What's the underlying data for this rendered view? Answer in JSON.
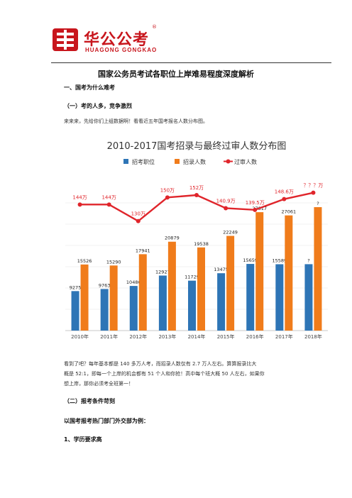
{
  "header": {
    "brand_cn": "华公公考",
    "brand_en": "HUAGONG GONGKAO",
    "reg": "®"
  },
  "document": {
    "title": "国家公务员考试各职位上岸难易程度深度解析",
    "section1": "一、国考为什么难考",
    "section1_1": "（一）考的人多，竞争激烈",
    "intro": "来来来，先给你们上组数据啊！看看近五年国考报名人数分布图。",
    "analysis_line1": "看到了吧？每年基本都是 140 多万人考，而招录人数仅有 2.7 万人左右。算算报录比大",
    "analysis_line2": "概是 52:1，即每一个上岸的机会都有 51 个人和你抢！高中每个班大概 50 人左右，如果你",
    "analysis_line3": "想上岸，那你必须考全班第一！",
    "section1_2": "（二）报考条件苛刻",
    "example": "以国考报考热门部门外交部为例：",
    "item1": "1、学历要求高"
  },
  "colors": {
    "brand_red": "#c8161d",
    "blue": "#2e75b6",
    "orange": "#f07c1b",
    "line_red": "#e0252b"
  },
  "chart_data": {
    "type": "bar",
    "title": "2010-2017国考招录与最终过审人数分布图",
    "categories": [
      "2010年",
      "2011年",
      "2012年",
      "2013年",
      "2014年",
      "2015年",
      "2016年",
      "2017年",
      "2018年"
    ],
    "legend": [
      "招考职位",
      "招录人数",
      "过审人数"
    ],
    "legend_position": "top",
    "series": [
      {
        "name": "招考职位",
        "values": [
          9275,
          9763,
          10486,
          12927,
          11729,
          13475,
          15659,
          15589,
          null
        ],
        "labels": [
          "9275",
          "9763",
          "10486",
          "12927",
          "11729",
          "13475",
          "15659",
          "15589",
          "?"
        ]
      },
      {
        "name": "招录人数",
        "values": [
          15526,
          15290,
          17941,
          20879,
          19538,
          22249,
          27817,
          27061,
          null
        ],
        "labels": [
          "15526",
          "15290",
          "17941",
          "20879",
          "19538",
          "22249",
          "27817",
          "27061",
          "?"
        ]
      },
      {
        "name": "过审人数",
        "type": "line",
        "values": [
          144,
          144,
          130,
          150,
          152,
          140.9,
          139.5,
          148.6,
          null
        ],
        "labels": [
          "144万",
          "144万",
          "130万",
          "150万",
          "152万",
          "140.9万",
          "139.5万",
          "148.6万",
          "？？？万"
        ]
      }
    ],
    "grid": true
  }
}
